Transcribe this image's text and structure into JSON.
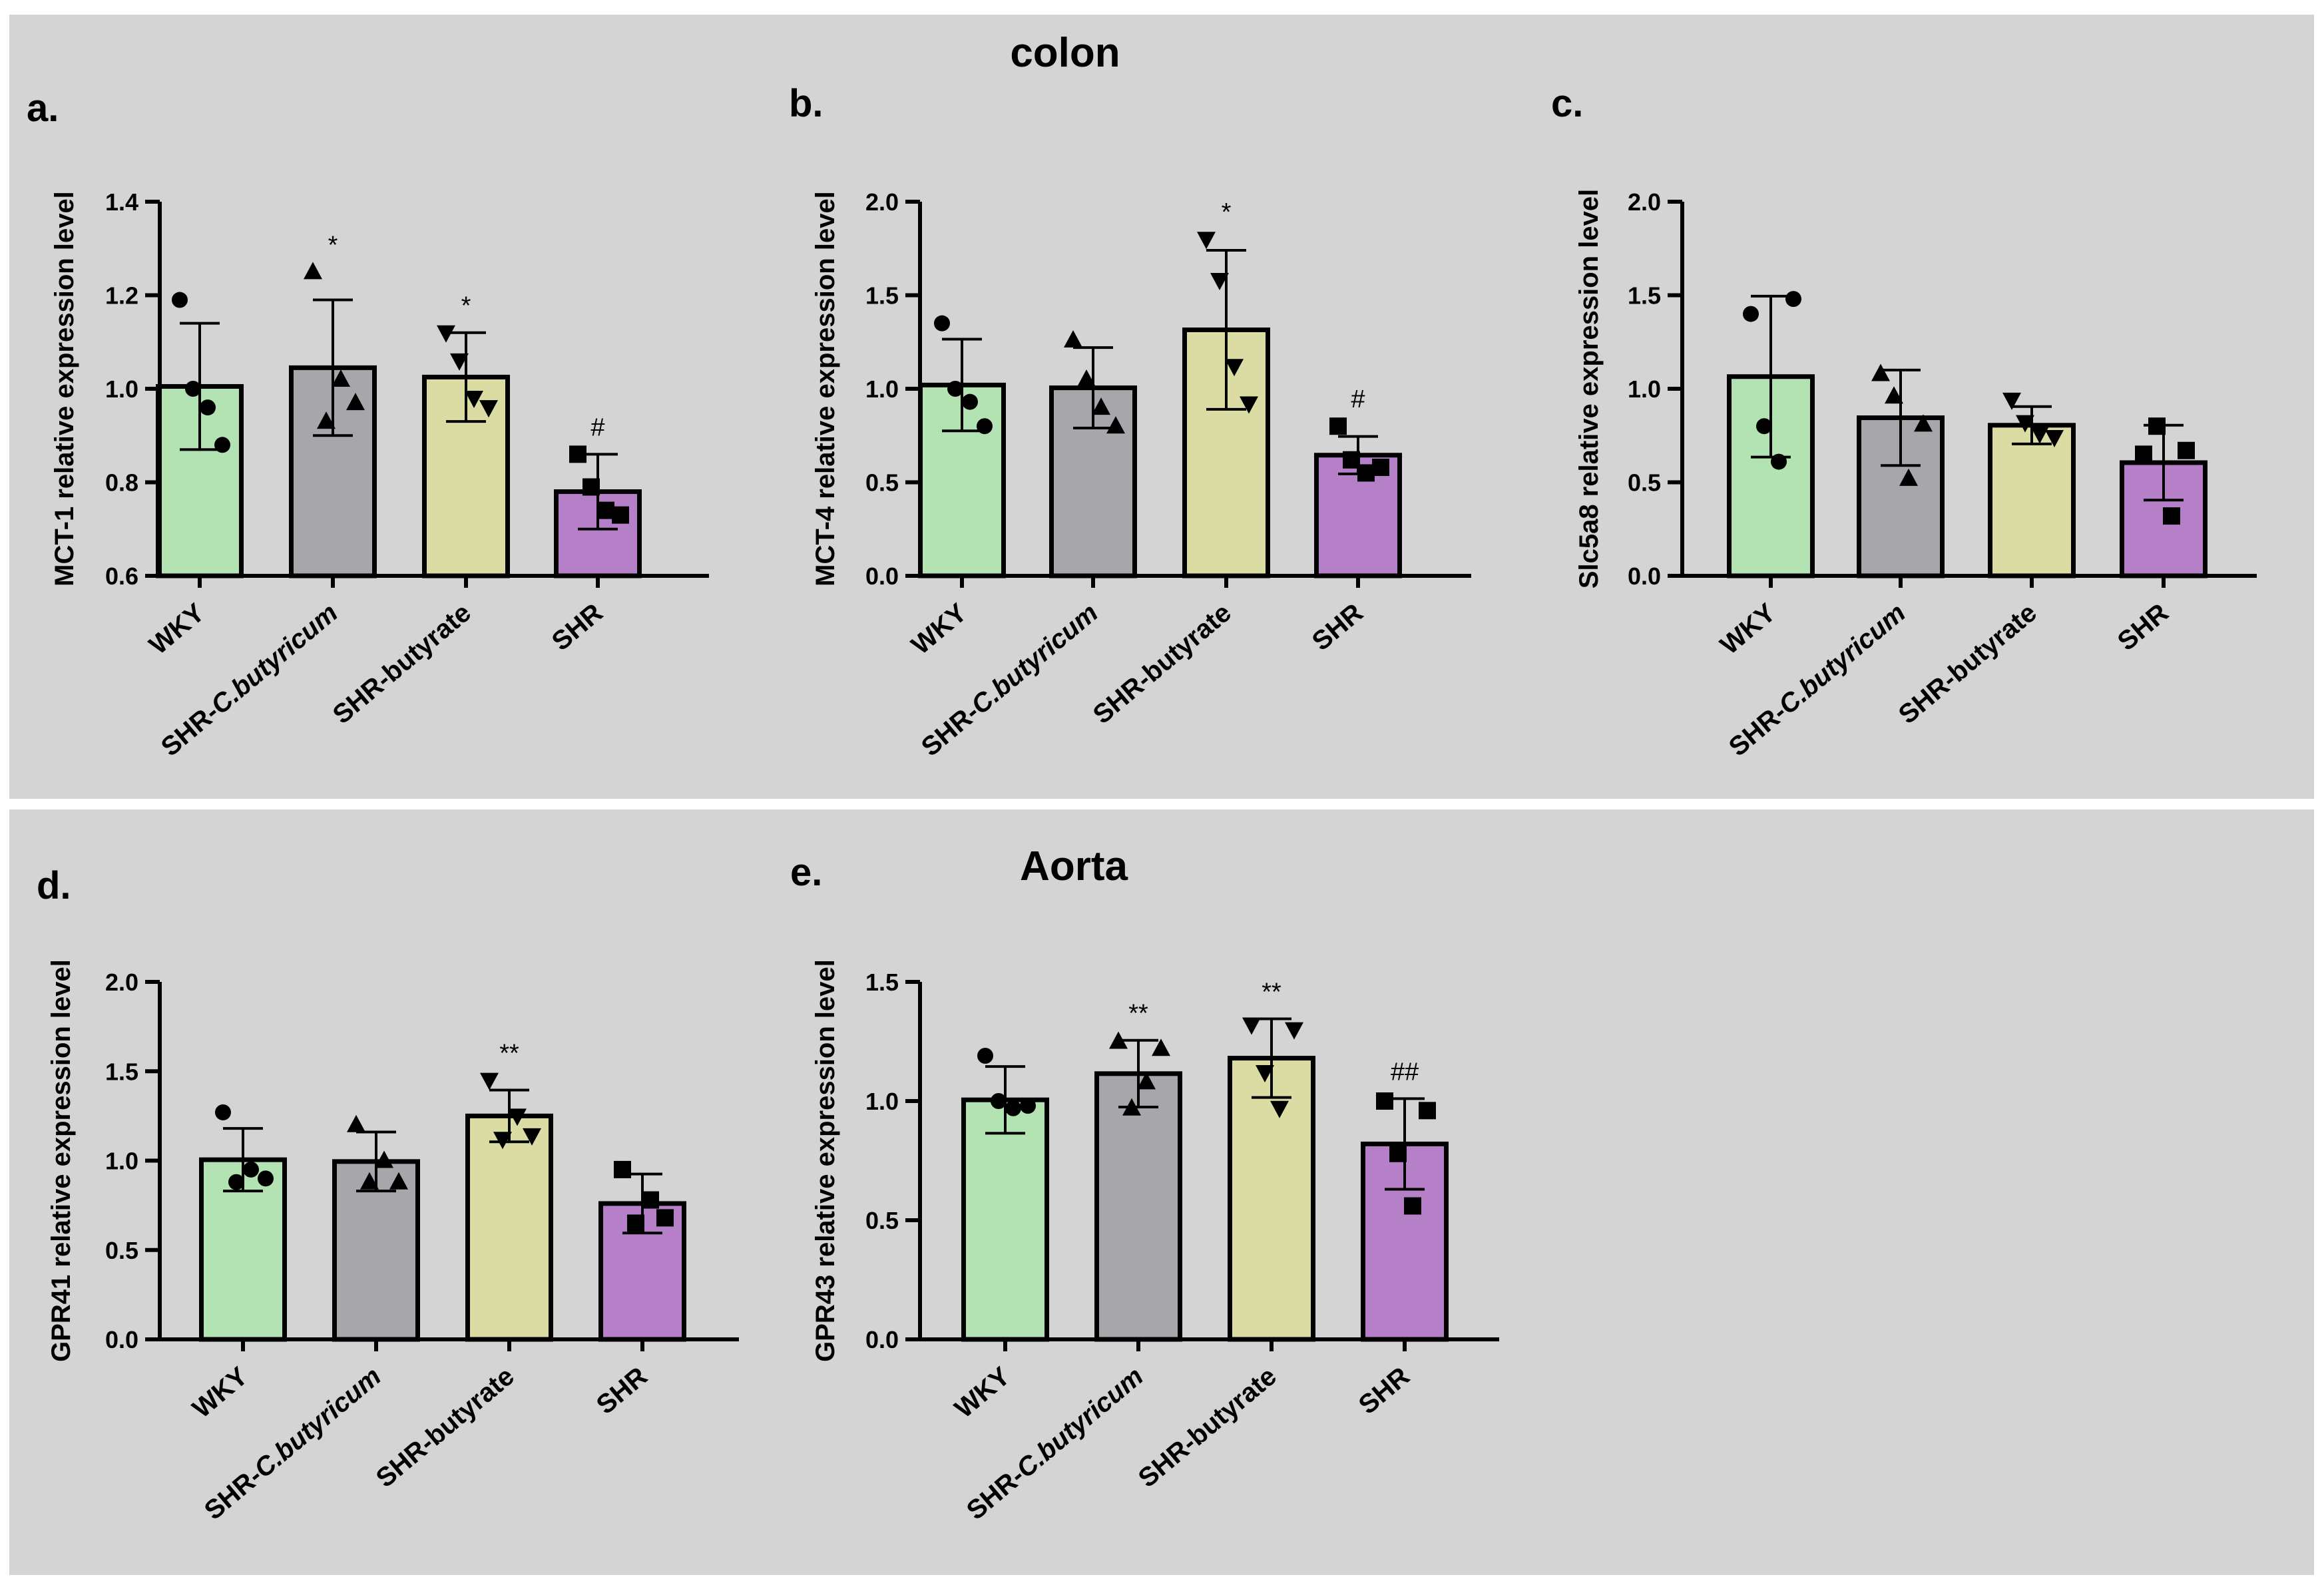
{
  "sections": [
    {
      "title": "colon"
    },
    {
      "title": "Aorta"
    }
  ],
  "colors": {
    "WKY": "#b3e2b3",
    "SHR-C.butyricum": "#a7a7ab",
    "SHR-butyrate": "#dadca4",
    "SHR": "#b680c8",
    "background": "#d4d4d4"
  },
  "chart_data": [
    {
      "type": "bar",
      "panel": "a.",
      "ylabel": "MCT-1 relative expression level",
      "ylim": [
        0.6,
        1.4
      ],
      "yticks": [
        "0.6",
        "0.8",
        "1.0",
        "1.2",
        "1.4"
      ],
      "categories": [
        "WKY",
        "SHR-C.butyricum",
        "SHR-butyrate",
        "SHR"
      ],
      "values": [
        1.005,
        1.045,
        1.025,
        0.78
      ],
      "sd": [
        0.135,
        0.145,
        0.095,
        0.08
      ],
      "markers": [
        "circle",
        "triangle",
        "triangle-down",
        "square"
      ],
      "points": [
        [
          1.19,
          1.0,
          0.96,
          0.88
        ],
        [
          1.25,
          0.93,
          1.02,
          0.97
        ],
        [
          1.12,
          1.06,
          0.98,
          0.96
        ],
        [
          0.86,
          0.79,
          0.74,
          0.73
        ]
      ],
      "significance": [
        "",
        "*",
        "*",
        "#"
      ]
    },
    {
      "type": "bar",
      "panel": "b.",
      "ylabel": "MCT-4 relative expression level",
      "ylim": [
        0.0,
        2.0
      ],
      "yticks": [
        "0.0",
        "0.5",
        "1.0",
        "1.5",
        "2.0"
      ],
      "categories": [
        "WKY",
        "SHR-C.butyricum",
        "SHR-butyrate",
        "SHR"
      ],
      "values": [
        1.02,
        1.005,
        1.315,
        0.645
      ],
      "sd": [
        0.245,
        0.215,
        0.425,
        0.1
      ],
      "markers": [
        "circle",
        "triangle",
        "triangle-down",
        "square"
      ],
      "points": [
        [
          1.35,
          1.0,
          0.93,
          0.8
        ],
        [
          1.26,
          1.05,
          0.9,
          0.8
        ],
        [
          1.8,
          1.58,
          1.12,
          0.92
        ],
        [
          0.8,
          0.62,
          0.55,
          0.58
        ]
      ],
      "significance": [
        "",
        "",
        "*",
        "#"
      ]
    },
    {
      "type": "bar",
      "panel": "c.",
      "ylabel": "Slc5a8 relative expression level",
      "ylim": [
        0.0,
        2.0
      ],
      "yticks": [
        "0.0",
        "0.5",
        "1.0",
        "1.5",
        "2.0"
      ],
      "categories": [
        "WKY",
        "SHR-C.butyricum",
        "SHR-butyrate",
        "SHR"
      ],
      "values": [
        1.065,
        0.845,
        0.805,
        0.605
      ],
      "sd": [
        0.43,
        0.255,
        0.1,
        0.2
      ],
      "markers": [
        "circle",
        "triangle",
        "triangle-down",
        "square"
      ],
      "points": [
        [
          1.4,
          0.8,
          0.61,
          1.48
        ],
        [
          1.08,
          0.96,
          0.52,
          0.81
        ],
        [
          0.94,
          0.82,
          0.76,
          0.74
        ],
        [
          0.65,
          0.8,
          0.32,
          0.67
        ]
      ],
      "significance": [
        "",
        "",
        "",
        ""
      ]
    },
    {
      "type": "bar",
      "panel": "d.",
      "ylabel": "GPR41 relative expression level",
      "ylim": [
        0.0,
        2.0
      ],
      "yticks": [
        "0.0",
        "0.5",
        "1.0",
        "1.5",
        "2.0"
      ],
      "categories": [
        "WKY",
        "SHR-C.butyricum",
        "SHR-butyrate",
        "SHR"
      ],
      "values": [
        1.005,
        0.995,
        1.25,
        0.76
      ],
      "sd": [
        0.175,
        0.165,
        0.145,
        0.165
      ],
      "markers": [
        "circle",
        "triangle",
        "triangle-down",
        "square"
      ],
      "points": [
        [
          1.27,
          0.88,
          0.95,
          0.9
        ],
        [
          1.2,
          0.88,
          1.0,
          0.88
        ],
        [
          1.45,
          1.12,
          1.25,
          1.14
        ],
        [
          0.95,
          0.65,
          0.78,
          0.68
        ]
      ],
      "significance": [
        "",
        "",
        "**",
        ""
      ]
    },
    {
      "type": "bar",
      "panel": "e.",
      "ylabel": "GPR43 relative expression level",
      "ylim": [
        0.0,
        1.5
      ],
      "yticks": [
        "0.0",
        "0.5",
        "1.0",
        "1.5"
      ],
      "categories": [
        "WKY",
        "SHR-C.butyricum",
        "SHR-butyrate",
        "SHR"
      ],
      "values": [
        1.005,
        1.115,
        1.18,
        0.82
      ],
      "sd": [
        0.14,
        0.14,
        0.165,
        0.19
      ],
      "markers": [
        "circle",
        "triangle",
        "triangle-down",
        "square"
      ],
      "points": [
        [
          1.19,
          1.0,
          0.97,
          0.98
        ],
        [
          1.25,
          0.97,
          1.08,
          1.22
        ],
        [
          1.32,
          1.12,
          0.97,
          1.3
        ],
        [
          1.0,
          0.78,
          0.56,
          0.96
        ]
      ],
      "significance": [
        "",
        "**",
        "**",
        "##"
      ]
    }
  ]
}
